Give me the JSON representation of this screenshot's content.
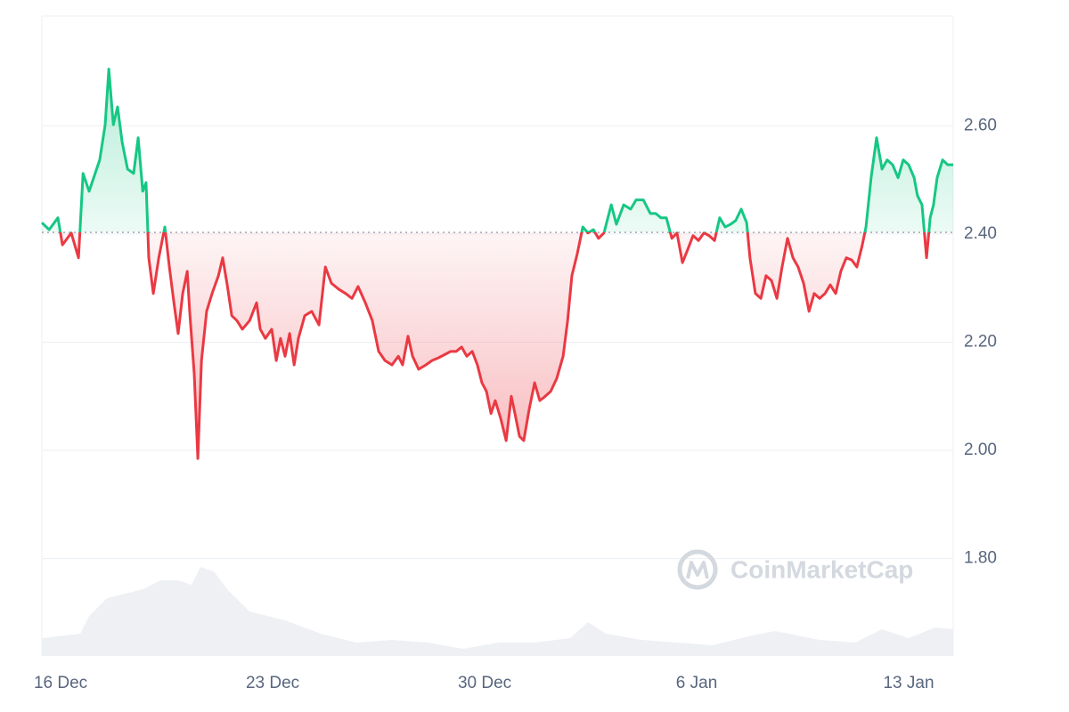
{
  "chart_data": {
    "type": "line",
    "x": [
      -0.62,
      -0.38,
      -0.09,
      0.06,
      0.35,
      0.59,
      0.74,
      0.94,
      1.09,
      1.29,
      1.47,
      1.59,
      1.74,
      1.88,
      2.03,
      2.21,
      2.41,
      2.56,
      2.71,
      2.82,
      2.91,
      3.06,
      3.24,
      3.44,
      3.59,
      3.74,
      3.88,
      4.03,
      4.18,
      4.26,
      4.41,
      4.53,
      4.65,
      4.82,
      5.0,
      5.21,
      5.35,
      5.5,
      5.65,
      5.82,
      6.0,
      6.24,
      6.47,
      6.59,
      6.76,
      6.97,
      7.12,
      7.26,
      7.41,
      7.56,
      7.71,
      7.85,
      8.06,
      8.29,
      8.53,
      8.74,
      8.94,
      9.18,
      9.41,
      9.62,
      9.82,
      10.06,
      10.29,
      10.5,
      10.71,
      10.94,
      11.15,
      11.29,
      11.47,
      11.62,
      11.82,
      12.06,
      12.26,
      12.47,
      12.71,
      12.88,
      13.06,
      13.24,
      13.41,
      13.59,
      13.76,
      13.91,
      14.06,
      14.21,
      14.35,
      14.53,
      14.71,
      14.88,
      15.0,
      15.15,
      15.29,
      15.47,
      15.65,
      15.82,
      16.0,
      16.18,
      16.38,
      16.59,
      16.74,
      16.88,
      17.06,
      17.24,
      17.41,
      17.59,
      17.76,
      17.94,
      18.18,
      18.35,
      18.59,
      18.82,
      19.0,
      19.24,
      19.47,
      19.65,
      19.82,
      20.0,
      20.18,
      20.35,
      20.53,
      20.71,
      20.88,
      21.06,
      21.24,
      21.41,
      21.59,
      21.76,
      21.94,
      22.12,
      22.29,
      22.47,
      22.65,
      22.76,
      22.94,
      23.12,
      23.29,
      23.47,
      23.65,
      23.82,
      24.0,
      24.18,
      24.35,
      24.53,
      24.71,
      24.88,
      25.06,
      25.24,
      25.41,
      25.59,
      25.76,
      25.94,
      26.12,
      26.29,
      26.47,
      26.59,
      26.76,
      26.94,
      27.12,
      27.29,
      27.47,
      27.65,
      27.82,
      28.0,
      28.18,
      28.29,
      28.44,
      28.59,
      28.71,
      28.82,
      28.94,
      29.12,
      29.29,
      29.47
    ],
    "values": [
      2.421,
      2.408,
      2.43,
      2.38,
      2.402,
      2.356,
      2.512,
      2.479,
      2.504,
      2.537,
      2.602,
      2.705,
      2.602,
      2.635,
      2.57,
      2.52,
      2.512,
      2.578,
      2.479,
      2.495,
      2.356,
      2.29,
      2.356,
      2.413,
      2.339,
      2.273,
      2.216,
      2.29,
      2.331,
      2.257,
      2.142,
      1.985,
      2.166,
      2.257,
      2.29,
      2.323,
      2.356,
      2.306,
      2.249,
      2.24,
      2.224,
      2.24,
      2.273,
      2.224,
      2.207,
      2.224,
      2.166,
      2.207,
      2.174,
      2.216,
      2.158,
      2.207,
      2.249,
      2.257,
      2.232,
      2.339,
      2.309,
      2.298,
      2.29,
      2.281,
      2.303,
      2.273,
      2.24,
      2.183,
      2.166,
      2.158,
      2.174,
      2.158,
      2.211,
      2.174,
      2.15,
      2.158,
      2.166,
      2.171,
      2.178,
      2.183,
      2.183,
      2.191,
      2.174,
      2.183,
      2.158,
      2.125,
      2.109,
      2.068,
      2.092,
      2.059,
      2.018,
      2.1,
      2.068,
      2.026,
      2.018,
      2.076,
      2.125,
      2.092,
      2.1,
      2.109,
      2.133,
      2.174,
      2.24,
      2.323,
      2.364,
      2.413,
      2.402,
      2.408,
      2.392,
      2.402,
      2.454,
      2.418,
      2.454,
      2.446,
      2.463,
      2.463,
      2.438,
      2.438,
      2.43,
      2.43,
      2.392,
      2.402,
      2.347,
      2.372,
      2.397,
      2.388,
      2.402,
      2.397,
      2.388,
      2.43,
      2.413,
      2.418,
      2.425,
      2.446,
      2.421,
      2.356,
      2.29,
      2.281,
      2.323,
      2.314,
      2.281,
      2.339,
      2.392,
      2.356,
      2.339,
      2.309,
      2.257,
      2.29,
      2.281,
      2.29,
      2.306,
      2.29,
      2.331,
      2.356,
      2.352,
      2.339,
      2.38,
      2.413,
      2.504,
      2.578,
      2.52,
      2.537,
      2.528,
      2.504,
      2.537,
      2.528,
      2.504,
      2.471,
      2.454,
      2.356,
      2.43,
      2.454,
      2.504,
      2.537,
      2.528,
      2.528
    ],
    "baseline": 2.403,
    "up_color": "#16c784",
    "down_color": "#ea3943",
    "xlim": [
      -0.62,
      29.47
    ],
    "xticks": [
      {
        "value": 0,
        "label": "16 Dec"
      },
      {
        "value": 7,
        "label": "23 Dec"
      },
      {
        "value": 14,
        "label": "30 Dec"
      },
      {
        "value": 21,
        "label": "6 Jan"
      },
      {
        "value": 28,
        "label": "13 Jan"
      }
    ],
    "ylim": [
      1.62,
      2.803
    ],
    "yticks": [
      {
        "value": 1.8,
        "label": "1.80"
      },
      {
        "value": 2.0,
        "label": "2.00"
      },
      {
        "value": 2.2,
        "label": "2.20"
      },
      {
        "value": 2.4,
        "label": "2.40"
      },
      {
        "value": 2.6,
        "label": "2.60"
      }
    ],
    "grid": true,
    "volume": {
      "x": [
        -0.62,
        0.65,
        0.94,
        1.53,
        2.12,
        2.71,
        3.29,
        3.88,
        4.32,
        4.62,
        5.06,
        5.5,
        6.24,
        7.41,
        8.59,
        9.76,
        10.94,
        12.12,
        13.29,
        14.47,
        15.65,
        16.82,
        17.41,
        18.0,
        19.18,
        21.53,
        22.71,
        23.59,
        25.06,
        26.24,
        27.12,
        28.0,
        28.88,
        29.47
      ],
      "values": [
        20,
        25,
        45,
        65,
        70,
        75,
        85,
        85,
        80,
        100,
        95,
        75,
        50,
        40,
        25,
        15,
        18,
        15,
        8,
        15,
        15,
        20,
        38,
        25,
        18,
        12,
        22,
        28,
        18,
        15,
        30,
        20,
        32,
        30
      ],
      "ylim": [
        0,
        720
      ],
      "color": "#eef0f4"
    },
    "watermark": "CoinMarketCap"
  }
}
